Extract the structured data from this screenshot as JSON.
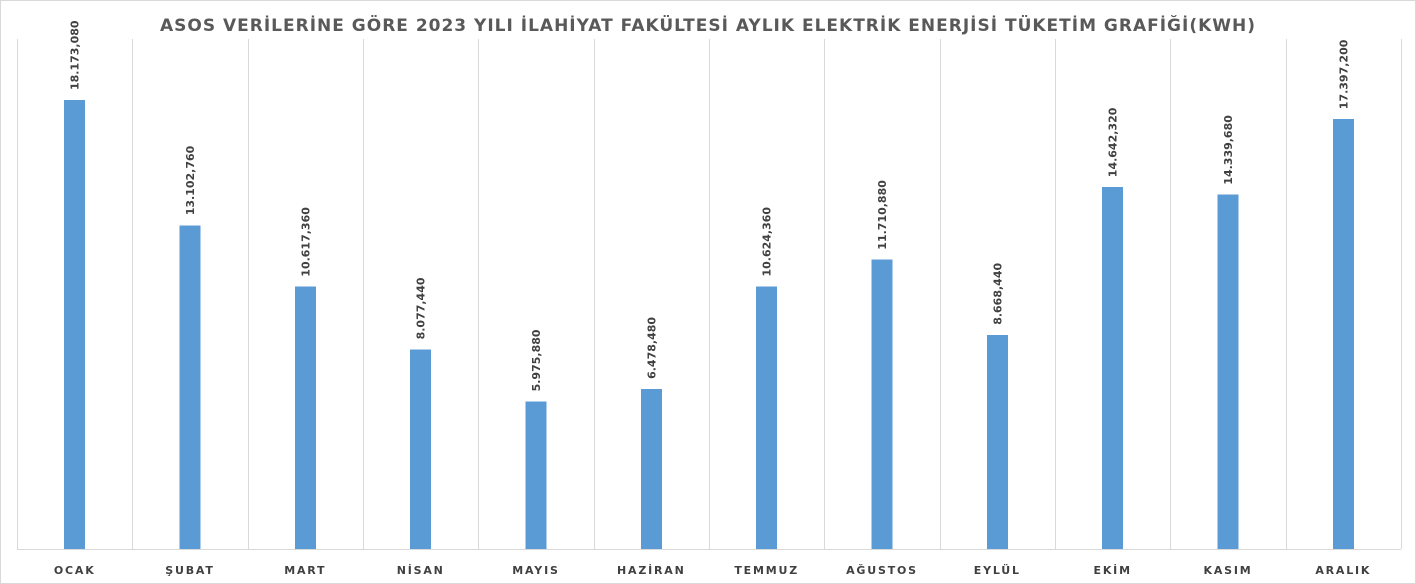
{
  "chart_data": {
    "type": "bar",
    "title": "ASOS VERİLERİNE GÖRE 2023 YILI İLAHİYAT FAKÜLTESİ AYLIK ELEKTRİK ENERJİSİ TÜKETİM GRAFİĞİ(KWH)",
    "categories": [
      "OCAK",
      "ŞUBAT",
      "MART",
      "NİSAN",
      "MAYIS",
      "HAZİRAN",
      "TEMMUZ",
      "AĞUSTOS",
      "EYLÜL",
      "EKİM",
      "KASIM",
      "ARALIK"
    ],
    "values": [
      18173080,
      13102760,
      10617360,
      8077440,
      5975880,
      6478480,
      10624360,
      11710880,
      8668440,
      14642320,
      14339680,
      17397200
    ],
    "data_labels": [
      "18.173,080",
      "13.102,760",
      "10.617,360",
      "8.077,440",
      "5.975,880",
      "6.478,480",
      "10.624,360",
      "11.710,880",
      "8.668,440",
      "14.642,320",
      "14.339,680",
      "17.397,200"
    ],
    "xlabel": "",
    "ylabel": "",
    "ylim": [
      0,
      18173080
    ],
    "bar_color": "#5b9bd5",
    "grid": "vertical category separators",
    "legend": "none"
  }
}
